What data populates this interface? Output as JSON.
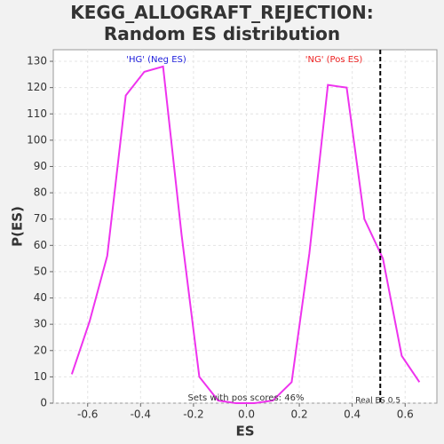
{
  "chart_data": {
    "type": "line",
    "title": "KEGG_ALLOGRAFT_REJECTION: Random ES distribution",
    "xlabel": "ES",
    "ylabel": "P(ES)",
    "x": [
      -0.66,
      -0.593,
      -0.526,
      -0.456,
      -0.386,
      -0.315,
      -0.245,
      -0.178,
      -0.107,
      -0.04,
      0.03,
      0.1,
      0.171,
      0.238,
      0.308,
      0.379,
      0.446,
      0.516,
      0.587,
      0.654
    ],
    "series": [
      {
        "color": "#ee33ee",
        "values": [
          11,
          31,
          56,
          117,
          126,
          128,
          64,
          10,
          1,
          0,
          0,
          1,
          8,
          57,
          121,
          120,
          70,
          55,
          18,
          8
        ]
      }
    ],
    "xlim": [
      -0.73,
      0.72
    ],
    "ylim": [
      0,
      134.4
    ],
    "xticks": [
      -0.6,
      -0.4,
      -0.2,
      {
        "value": 0,
        "label": "0.0"
      },
      0.2,
      0.4,
      0.6
    ],
    "yticks": [
      0,
      10,
      20,
      30,
      40,
      50,
      60,
      70,
      80,
      90,
      100,
      110,
      120,
      130
    ],
    "grid": true,
    "reference_line": {
      "x": 0.506,
      "label": "Real ES 0.5"
    },
    "annotations": [
      {
        "text": "'HG' (Neg ES)",
        "color": "#2222dd"
      },
      {
        "text": "'NG' (Pos ES)",
        "color": "#ee2222"
      },
      {
        "text": "Sets with pos scores: 46%",
        "color": "#333333"
      }
    ]
  }
}
